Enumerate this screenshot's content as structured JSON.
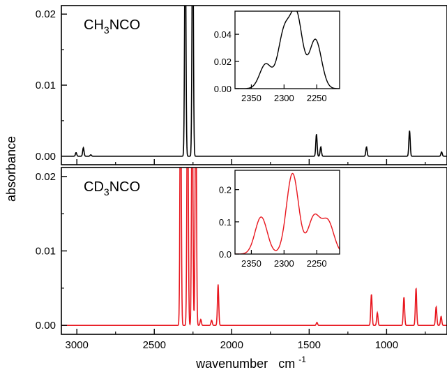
{
  "figure": {
    "xlabel": "wavenumber",
    "xlabel_unit": "cm",
    "xlabel_unit_exp": "-1",
    "ylabel": "absorbance"
  },
  "chart_data": [
    {
      "type": "line",
      "panel": "top",
      "label_prefix": "CH",
      "label_sub": "3",
      "label_suffix": "NCO",
      "color": "#000000",
      "xlim": [
        3100,
        610
      ],
      "ylim": [
        -0.0012,
        0.0212
      ],
      "xticks": [
        3000,
        2500,
        2000,
        1500,
        1000
      ],
      "xtick_labels": [
        "3000",
        "2500",
        "2000",
        "1500",
        "1000"
      ],
      "yticks": [
        0.0,
        0.01,
        0.02
      ],
      "ytick_labels": [
        "0.00",
        "0.01",
        "0.02"
      ],
      "peaks": [
        {
          "x": 3005,
          "y": 0.0005
        },
        {
          "x": 2958,
          "y": 0.0012
        },
        {
          "x": 2910,
          "y": 0.0002
        },
        {
          "x": 2300,
          "y": 0.035
        },
        {
          "x": 2252,
          "y": 0.035
        },
        {
          "x": 1453,
          "y": 0.0031
        },
        {
          "x": 1425,
          "y": 0.0013
        },
        {
          "x": 1130,
          "y": 0.0013
        },
        {
          "x": 852,
          "y": 0.0036
        },
        {
          "x": 645,
          "y": 0.0006
        }
      ],
      "inset": {
        "xlim": [
          2375,
          2215
        ],
        "ylim": [
          0.0,
          0.057
        ],
        "xticks": [
          2350,
          2300,
          2250
        ],
        "xtick_labels": [
          "2350",
          "2300",
          "2250"
        ],
        "yticks": [
          0.0,
          0.02,
          0.04
        ],
        "ytick_labels": [
          "0.00",
          "0.02",
          "0.04"
        ],
        "peaks": [
          {
            "x": 2328,
            "y": 0.018
          },
          {
            "x": 2300,
            "y": 0.04
          },
          {
            "x": 2281,
            "y": 0.053
          },
          {
            "x": 2252,
            "y": 0.036
          }
        ]
      }
    },
    {
      "type": "line",
      "panel": "bottom",
      "label_prefix": "CD",
      "label_sub": "3",
      "label_suffix": "NCO",
      "color": "#e8161e",
      "xlim": [
        3100,
        610
      ],
      "ylim": [
        -0.0012,
        0.0212
      ],
      "xticks": [
        3000,
        2500,
        2000,
        1500,
        1000
      ],
      "xtick_labels": [
        "3000",
        "2500",
        "2000",
        "1500",
        "1000"
      ],
      "yticks": [
        0.0,
        0.01,
        0.02
      ],
      "ytick_labels": [
        "0.00",
        "0.01",
        "0.02"
      ],
      "peaks": [
        {
          "x": 2330,
          "y": 0.035
        },
        {
          "x": 2285,
          "y": 0.035
        },
        {
          "x": 2255,
          "y": 0.035
        },
        {
          "x": 2232,
          "y": 0.035
        },
        {
          "x": 2200,
          "y": 0.0008
        },
        {
          "x": 2130,
          "y": 0.0007
        },
        {
          "x": 2088,
          "y": 0.0055
        },
        {
          "x": 1450,
          "y": 0.0004
        },
        {
          "x": 1098,
          "y": 0.0042
        },
        {
          "x": 1060,
          "y": 0.0017
        },
        {
          "x": 888,
          "y": 0.0038
        },
        {
          "x": 810,
          "y": 0.005
        },
        {
          "x": 680,
          "y": 0.0025
        },
        {
          "x": 648,
          "y": 0.0012
        }
      ],
      "inset": {
        "xlim": [
          2375,
          2215
        ],
        "ylim": [
          0.0,
          0.26
        ],
        "xticks": [
          2350,
          2300,
          2250
        ],
        "xtick_labels": [
          "2350",
          "2300",
          "2250"
        ],
        "yticks": [
          0.0,
          0.1,
          0.2
        ],
        "ytick_labels": [
          "0.0",
          "0.1",
          "0.2"
        ],
        "peaks": [
          {
            "x": 2335,
            "y": 0.115
          },
          {
            "x": 2287,
            "y": 0.25
          },
          {
            "x": 2254,
            "y": 0.115
          },
          {
            "x": 2233,
            "y": 0.1
          }
        ]
      }
    }
  ]
}
